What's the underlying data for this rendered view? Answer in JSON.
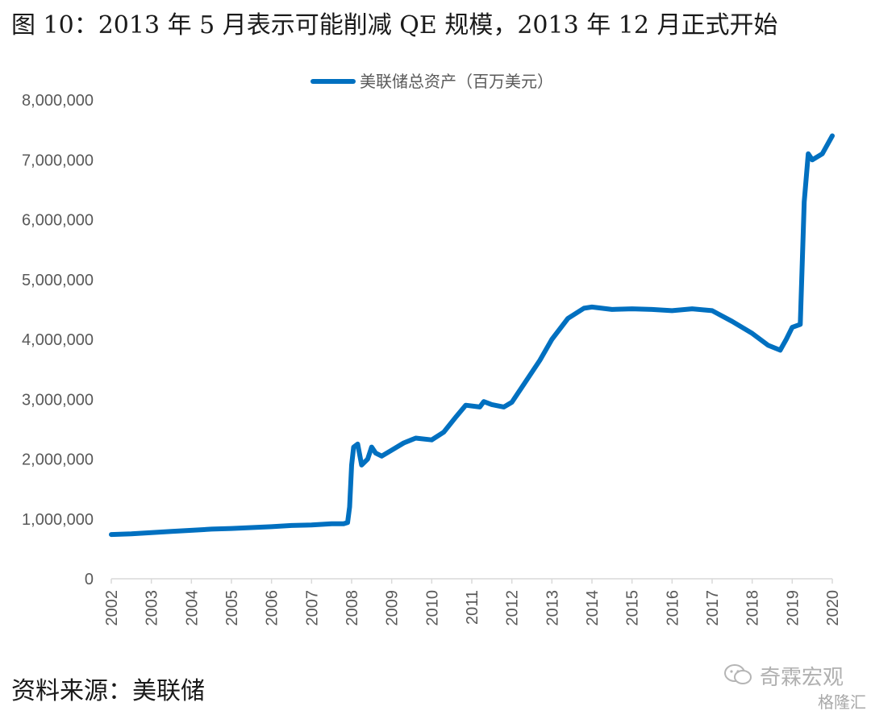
{
  "title": "图 10：2013 年 5 月表示可能削减 QE 规模，2013 年 12 月正式开始",
  "source": "资料来源：美联储",
  "watermark": {
    "brand": "奇霖宏观",
    "platform": "格隆汇"
  },
  "colors": {
    "line": "#0070C0",
    "axis": "#d9d9d9",
    "text": "#595959"
  },
  "chart_data": {
    "type": "line",
    "title": "",
    "xlabel": "",
    "ylabel": "",
    "legend": "top",
    "grid": false,
    "ylim": [
      0,
      8000000
    ],
    "xlim": [
      2002,
      2020
    ],
    "yticks": [
      0,
      1000000,
      2000000,
      3000000,
      4000000,
      5000000,
      6000000,
      7000000,
      8000000
    ],
    "ytick_labels": [
      "0",
      "1,000,000",
      "2,000,000",
      "3,000,000",
      "4,000,000",
      "5,000,000",
      "6,000,000",
      "7,000,000",
      "8,000,000"
    ],
    "xtick_labels": [
      "2002",
      "2003",
      "2004",
      "2005",
      "2006",
      "2007",
      "2008",
      "2009",
      "2010",
      "2011",
      "2012",
      "2013",
      "2014",
      "2015",
      "2016",
      "2017",
      "2018",
      "2019",
      "2020"
    ],
    "series": [
      {
        "name": "美联储总资产（百万美元）",
        "points": [
          [
            2002.0,
            740000
          ],
          [
            2002.5,
            750000
          ],
          [
            2003.0,
            770000
          ],
          [
            2003.5,
            790000
          ],
          [
            2004.0,
            810000
          ],
          [
            2004.5,
            830000
          ],
          [
            2005.0,
            840000
          ],
          [
            2005.5,
            855000
          ],
          [
            2006.0,
            870000
          ],
          [
            2006.5,
            890000
          ],
          [
            2007.0,
            900000
          ],
          [
            2007.5,
            920000
          ],
          [
            2007.8,
            920000
          ],
          [
            2007.9,
            940000
          ],
          [
            2007.95,
            1200000
          ],
          [
            2008.0,
            1900000
          ],
          [
            2008.05,
            2200000
          ],
          [
            2008.15,
            2250000
          ],
          [
            2008.25,
            1900000
          ],
          [
            2008.4,
            2000000
          ],
          [
            2008.5,
            2200000
          ],
          [
            2008.6,
            2100000
          ],
          [
            2008.75,
            2050000
          ],
          [
            2009.0,
            2150000
          ],
          [
            2009.3,
            2270000
          ],
          [
            2009.6,
            2350000
          ],
          [
            2010.0,
            2320000
          ],
          [
            2010.3,
            2450000
          ],
          [
            2010.6,
            2700000
          ],
          [
            2010.85,
            2900000
          ],
          [
            2011.2,
            2870000
          ],
          [
            2011.3,
            2960000
          ],
          [
            2011.5,
            2910000
          ],
          [
            2011.8,
            2870000
          ],
          [
            2012.0,
            2950000
          ],
          [
            2012.3,
            3250000
          ],
          [
            2012.7,
            3650000
          ],
          [
            2013.0,
            4000000
          ],
          [
            2013.4,
            4350000
          ],
          [
            2013.8,
            4520000
          ],
          [
            2014.0,
            4540000
          ],
          [
            2014.5,
            4500000
          ],
          [
            2015.0,
            4510000
          ],
          [
            2015.5,
            4500000
          ],
          [
            2016.0,
            4480000
          ],
          [
            2016.5,
            4510000
          ],
          [
            2017.0,
            4480000
          ],
          [
            2017.5,
            4300000
          ],
          [
            2018.0,
            4100000
          ],
          [
            2018.4,
            3900000
          ],
          [
            2018.7,
            3820000
          ],
          [
            2018.85,
            4000000
          ],
          [
            2019.0,
            4200000
          ],
          [
            2019.2,
            4250000
          ],
          [
            2019.3,
            6300000
          ],
          [
            2019.4,
            7100000
          ],
          [
            2019.5,
            7000000
          ],
          [
            2019.75,
            7100000
          ],
          [
            2020.0,
            7400000
          ]
        ]
      }
    ]
  }
}
